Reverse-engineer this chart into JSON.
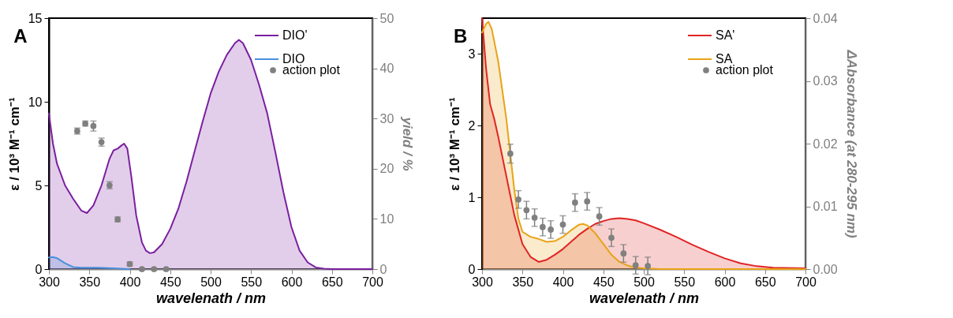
{
  "chart_data": [
    {
      "type": "area",
      "title": "A",
      "xlabel": "wavelenath / nm",
      "ylabel": "ε / 10³ M⁻¹ cm⁻¹",
      "y2label": "yield / %",
      "xlim": [
        300,
        700
      ],
      "xticks": [
        300,
        350,
        400,
        450,
        500,
        550,
        600,
        650,
        700
      ],
      "ylim": [
        0,
        15
      ],
      "yticks": [
        0,
        5,
        10,
        15
      ],
      "y2lim": [
        0,
        50
      ],
      "y2ticks": [
        0,
        10,
        20,
        30,
        40,
        50
      ],
      "legend": "top right",
      "grid": false,
      "series": [
        {
          "name": "DIO'",
          "color": "#7a1fa0",
          "x": [
            300,
            305,
            310,
            320,
            330,
            340,
            347,
            355,
            365,
            375,
            380,
            385,
            390,
            393,
            397,
            402,
            408,
            415,
            420,
            425,
            430,
            440,
            450,
            460,
            470,
            480,
            490,
            500,
            510,
            520,
            530,
            535,
            540,
            550,
            560,
            570,
            580,
            590,
            600,
            610,
            620,
            630,
            640,
            650,
            700
          ],
          "values": [
            9.3,
            7.5,
            6.3,
            5,
            4.2,
            3.5,
            3.35,
            3.8,
            5,
            6.6,
            7.1,
            7.2,
            7.4,
            7.5,
            7.2,
            5.5,
            3.2,
            1.6,
            1.1,
            0.95,
            1,
            1.5,
            2.4,
            3.6,
            5.2,
            7,
            8.8,
            10.5,
            11.8,
            12.8,
            13.5,
            13.7,
            13.5,
            12.5,
            11,
            9.3,
            7,
            4.6,
            2.5,
            1.1,
            0.4,
            0.1,
            0.02,
            0,
            0
          ]
        },
        {
          "name": "DIO",
          "color": "#4a8fdc",
          "x": [
            300,
            305,
            310,
            320,
            330,
            340,
            360,
            380,
            400
          ],
          "values": [
            0.7,
            0.72,
            0.65,
            0.35,
            0.12,
            0.08,
            0.08,
            0.05,
            0
          ]
        },
        {
          "name": "action plot",
          "type": "scatter",
          "axis": "y2",
          "color": "#808080",
          "x": [
            335,
            345,
            355,
            365,
            375,
            385,
            400,
            415,
            430,
            445
          ],
          "values": [
            27.5,
            29,
            28.5,
            25.3,
            16.7,
            9.9,
            1,
            0,
            0,
            0
          ],
          "errors": [
            0.6,
            0.5,
            1,
            0.8,
            0.7,
            0.5,
            0.4,
            0.2,
            0.2,
            0.2
          ]
        }
      ]
    },
    {
      "type": "area",
      "title": "B",
      "xlabel": "wavelenath / nm",
      "ylabel": "ε / 10³ M⁻¹ cm⁻¹",
      "y2label": "ΔAbsorbance (at 280-295 nm)",
      "xlim": [
        300,
        700
      ],
      "xticks": [
        300,
        350,
        400,
        450,
        500,
        550,
        600,
        650,
        700
      ],
      "ylim": [
        0,
        3.5
      ],
      "yticks": [
        0,
        1,
        2,
        3
      ],
      "y2lim": [
        0,
        0.04
      ],
      "y2ticks": [
        {
          "value": 0,
          "label": "0.00"
        },
        0.01,
        0.02,
        0.03,
        0.04
      ],
      "legend": "top right",
      "grid": false,
      "series": [
        {
          "name": "SA'",
          "color": "#e02424",
          "x": [
            300,
            305,
            310,
            315,
            320,
            330,
            340,
            350,
            360,
            370,
            380,
            390,
            400,
            410,
            420,
            430,
            440,
            450,
            460,
            470,
            480,
            490,
            500,
            520,
            540,
            560,
            580,
            600,
            620,
            640,
            660,
            700
          ],
          "values": [
            3.5,
            2.8,
            2.3,
            2.1,
            1.85,
            1.3,
            0.75,
            0.35,
            0.17,
            0.1,
            0.13,
            0.2,
            0.28,
            0.38,
            0.48,
            0.56,
            0.63,
            0.67,
            0.7,
            0.71,
            0.7,
            0.68,
            0.64,
            0.55,
            0.45,
            0.34,
            0.24,
            0.15,
            0.08,
            0.04,
            0.02,
            0.01
          ]
        },
        {
          "name": "SA",
          "color": "#e8a317",
          "x": [
            300,
            305,
            308,
            312,
            320,
            330,
            340,
            345,
            350,
            360,
            370,
            380,
            390,
            400,
            410,
            420,
            425,
            430,
            440,
            450,
            460,
            470,
            480,
            490,
            500,
            520,
            700
          ],
          "values": [
            3.3,
            3.42,
            3.45,
            3.35,
            2.9,
            2.1,
            1.1,
            0.7,
            0.52,
            0.45,
            0.42,
            0.38,
            0.39,
            0.45,
            0.54,
            0.62,
            0.63,
            0.61,
            0.5,
            0.35,
            0.2,
            0.1,
            0.05,
            0.02,
            0.01,
            0,
            0
          ]
        },
        {
          "name": "action plot",
          "type": "scatter",
          "axis": "y2",
          "color": "#808080",
          "x": [
            335,
            345,
            355,
            365,
            375,
            385,
            400,
            415,
            430,
            445,
            460,
            475,
            490,
            505
          ],
          "values": [
            0.0184,
            0.0111,
            0.0094,
            0.0082,
            0.0067,
            0.0063,
            0.0071,
            0.0106,
            0.0108,
            0.0084,
            0.005,
            0.0025,
            0.0006,
            0.0005
          ],
          "errors": [
            0.0015,
            0.0014,
            0.0014,
            0.0014,
            0.0014,
            0.0014,
            0.0014,
            0.0014,
            0.0014,
            0.0014,
            0.0014,
            0.0014,
            0.0014,
            0.0014
          ]
        }
      ]
    }
  ]
}
